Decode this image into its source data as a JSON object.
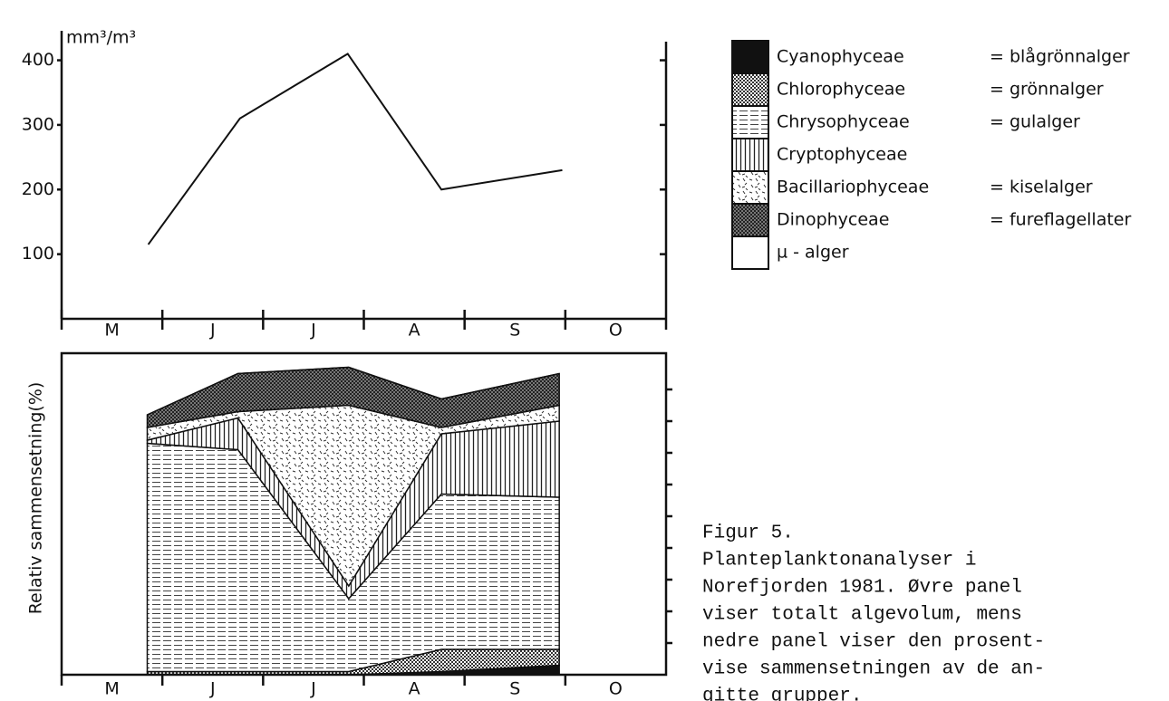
{
  "chart_data": [
    {
      "type": "line",
      "y_label": "mm³/m³",
      "categories": [
        "M",
        "J",
        "J",
        "A",
        "S",
        "O"
      ],
      "xlim": [
        0,
        6
      ],
      "x": [
        0.86,
        1.77,
        2.84,
        3.77,
        4.97
      ],
      "series": [
        {
          "color": "#111111",
          "values": [
            115,
            310,
            410,
            200,
            230
          ]
        }
      ],
      "ylim": [
        0,
        440
      ],
      "yticks": [
        100,
        200,
        300,
        400
      ]
    },
    {
      "type": "stacked-area",
      "y_label": "Relativ sammensetning(%)",
      "categories": [
        "M",
        "J",
        "J",
        "A",
        "S",
        "O"
      ],
      "xlim": [
        0,
        6
      ],
      "x": [
        0.85,
        1.75,
        2.85,
        3.77,
        4.94
      ],
      "ylim": [
        0,
        100
      ],
      "yticks": [
        10,
        20,
        30,
        40,
        50,
        60,
        70,
        80,
        90
      ],
      "series": [
        {
          "name": "Cyanophyceae",
          "translation": "= blågrönnalger",
          "pattern": "solid",
          "values": [
            0,
            0,
            0,
            1,
            3
          ]
        },
        {
          "name": "Chlorophyceae",
          "translation": "= grönnalger",
          "pattern": "dots",
          "values": [
            1,
            1,
            1,
            7,
            5
          ]
        },
        {
          "name": "Chrysophyceae",
          "translation": "= gulalger",
          "pattern": "hdash",
          "values": [
            72,
            70,
            23,
            49,
            48
          ]
        },
        {
          "name": "Cryptophyceae",
          "pattern": "vlines",
          "values": [
            1,
            10,
            4,
            19,
            24
          ]
        },
        {
          "name": "Bacillariophyceae",
          "translation": "= kiselalger",
          "pattern": "speckle",
          "values": [
            4,
            2,
            57,
            2,
            5
          ]
        },
        {
          "name": "Dinophyceae",
          "translation": "= fureflagellater",
          "pattern": "crosshatch",
          "values": [
            4,
            12,
            12,
            9,
            10
          ]
        },
        {
          "name": "µ - alger",
          "pattern": "none",
          "values": [
            0,
            0,
            0,
            0,
            0
          ]
        }
      ]
    }
  ],
  "caption": [
    "Figur 5.",
    "Planteplanktonanalyser i",
    "Norefjorden 1981. Øvre panel",
    "viser totalt algevolum, mens",
    "nedre panel viser den prosent-",
    "vise sammensetningen av de an-",
    "gitte grupper."
  ]
}
